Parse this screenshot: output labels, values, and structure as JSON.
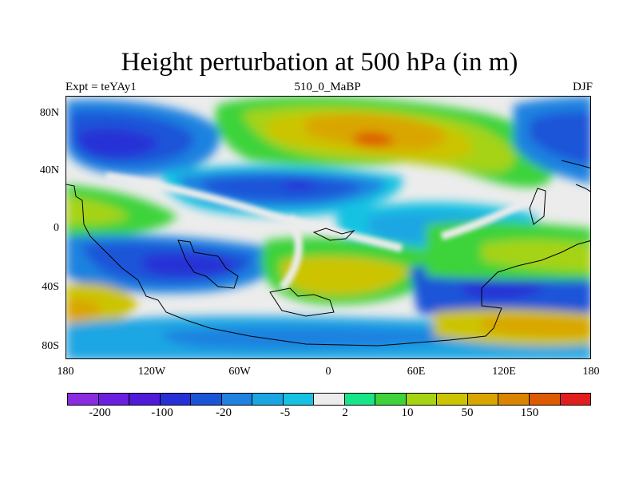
{
  "title": "Height perturbation at 500 hPa (in m)",
  "left_label": "Expt = teYAy1",
  "center_label": "510_0_MaBP",
  "right_label": "DJF",
  "lat_ticks": [
    "80N",
    "40N",
    "0",
    "40S",
    "80S"
  ],
  "lon_ticks": [
    "180",
    "120W",
    "60W",
    "0",
    "60E",
    "120E",
    "180"
  ],
  "colorbar": {
    "colors": [
      "#8a2be2",
      "#6a1ee0",
      "#4f1ad8",
      "#2630d6",
      "#1a55d8",
      "#1f82e0",
      "#1aa6e3",
      "#16c2e2",
      "#ececec",
      "#16e58a",
      "#3ed33a",
      "#a6d312",
      "#ccc400",
      "#d9a600",
      "#db8400",
      "#de5a00",
      "#e21d1d"
    ],
    "tick_labels": [
      "-200",
      "-100",
      "-20",
      "-5",
      "2",
      "10",
      "50",
      "150"
    ]
  }
}
